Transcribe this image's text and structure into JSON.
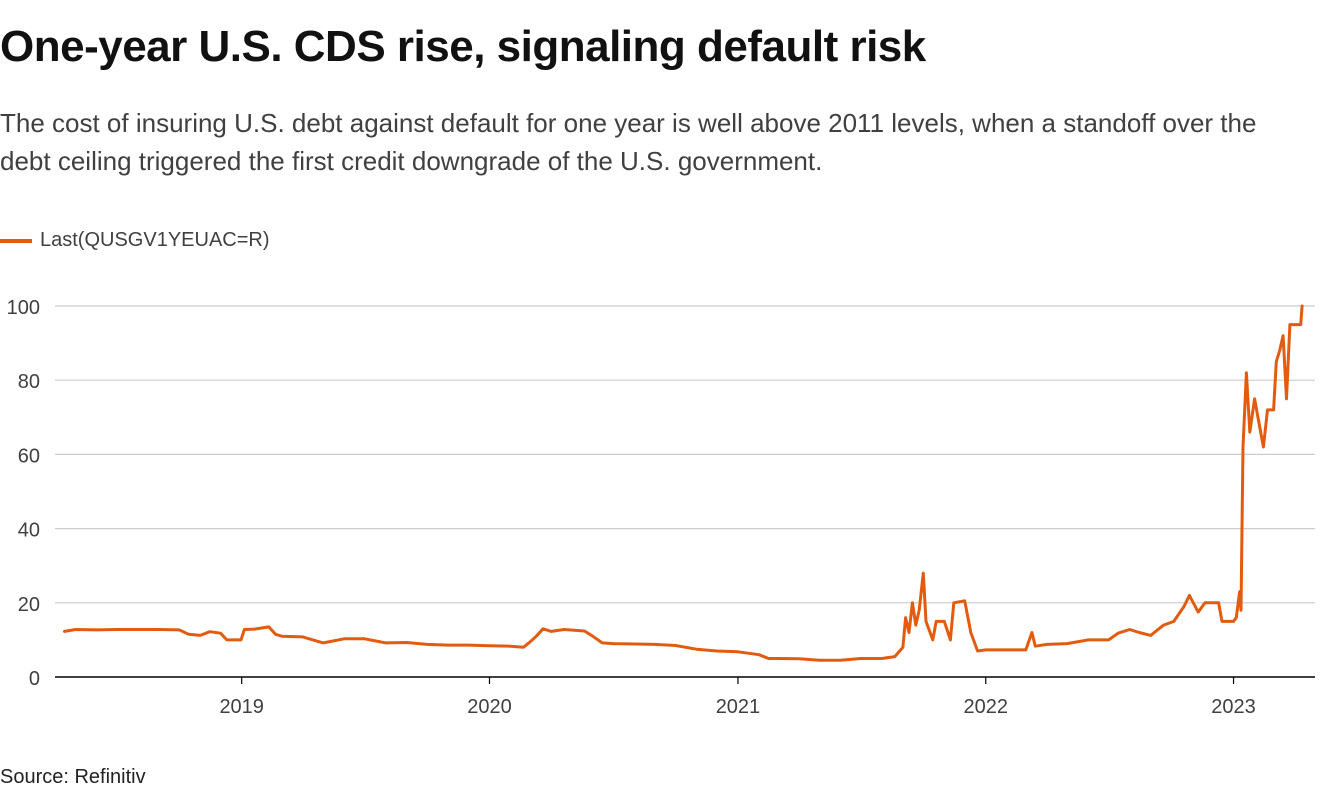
{
  "header": {
    "title": "One-year U.S. CDS rise, signaling default risk",
    "subtitle": "The cost of insuring U.S. debt against default for one year is well above 2011 levels, when a standoff over the debt ceiling triggered the first credit downgrade of the U.S. government."
  },
  "footer": {
    "source": "Source: Refinitiv"
  },
  "colors": {
    "line": "#e35b0e",
    "grid": "#cccccc",
    "axis": "#000000",
    "text": "#404040"
  },
  "chart_data": {
    "type": "line",
    "title": "One-year U.S. CDS rise, signaling default risk",
    "xlabel": "",
    "ylabel": "",
    "grid": true,
    "legend_position": "top-left",
    "ylim": [
      0,
      100
    ],
    "xlim": [
      "2018-04-01",
      "2023-05-01"
    ],
    "y_ticks": [
      0,
      20,
      40,
      60,
      80,
      100
    ],
    "x_ticks": [
      {
        "label": "2019",
        "date": "2019-01-01"
      },
      {
        "label": "2020",
        "date": "2020-01-01"
      },
      {
        "label": "2021",
        "date": "2021-01-01"
      },
      {
        "label": "2022",
        "date": "2022-01-01"
      },
      {
        "label": "2023",
        "date": "2023-01-01"
      }
    ],
    "series": [
      {
        "name": "Last(QUSGV1YEUAC=R)",
        "points": [
          [
            "2018-04-15",
            12.3
          ],
          [
            "2018-05-01",
            12.8
          ],
          [
            "2018-06-01",
            12.7
          ],
          [
            "2018-07-01",
            12.8
          ],
          [
            "2018-08-01",
            12.8
          ],
          [
            "2018-09-01",
            12.8
          ],
          [
            "2018-10-01",
            12.7
          ],
          [
            "2018-10-15",
            11.5
          ],
          [
            "2018-11-01",
            11.2
          ],
          [
            "2018-11-15",
            12.2
          ],
          [
            "2018-12-01",
            11.8
          ],
          [
            "2018-12-10",
            10.0
          ],
          [
            "2018-12-31",
            10.0
          ],
          [
            "2019-01-05",
            12.8
          ],
          [
            "2019-01-20",
            12.9
          ],
          [
            "2019-02-10",
            13.5
          ],
          [
            "2019-02-20",
            11.5
          ],
          [
            "2019-03-01",
            11.0
          ],
          [
            "2019-04-01",
            10.8
          ],
          [
            "2019-05-01",
            9.2
          ],
          [
            "2019-06-01",
            10.3
          ],
          [
            "2019-07-01",
            10.3
          ],
          [
            "2019-08-01",
            9.2
          ],
          [
            "2019-09-01",
            9.3
          ],
          [
            "2019-10-01",
            8.8
          ],
          [
            "2019-11-01",
            8.6
          ],
          [
            "2019-12-01",
            8.6
          ],
          [
            "2020-01-01",
            8.4
          ],
          [
            "2020-02-01",
            8.3
          ],
          [
            "2020-02-20",
            8.0
          ],
          [
            "2020-03-01",
            9.5
          ],
          [
            "2020-03-10",
            11.0
          ],
          [
            "2020-03-20",
            13.0
          ],
          [
            "2020-04-01",
            12.3
          ],
          [
            "2020-04-20",
            12.8
          ],
          [
            "2020-05-20",
            12.4
          ],
          [
            "2020-06-01",
            11.0
          ],
          [
            "2020-06-15",
            9.2
          ],
          [
            "2020-07-01",
            9.0
          ],
          [
            "2020-08-01",
            8.9
          ],
          [
            "2020-09-01",
            8.8
          ],
          [
            "2020-10-01",
            8.5
          ],
          [
            "2020-11-01",
            7.5
          ],
          [
            "2020-12-01",
            7.0
          ],
          [
            "2021-01-01",
            6.8
          ],
          [
            "2021-02-01",
            6.0
          ],
          [
            "2021-02-15",
            5.0
          ],
          [
            "2021-03-01",
            5.0
          ],
          [
            "2021-04-01",
            4.9
          ],
          [
            "2021-05-01",
            4.5
          ],
          [
            "2021-06-01",
            4.5
          ],
          [
            "2021-07-01",
            5.0
          ],
          [
            "2021-08-01",
            5.0
          ],
          [
            "2021-08-20",
            5.5
          ],
          [
            "2021-09-01",
            8.0
          ],
          [
            "2021-09-05",
            16.0
          ],
          [
            "2021-09-10",
            12.0
          ],
          [
            "2021-09-15",
            20.0
          ],
          [
            "2021-09-20",
            14.0
          ],
          [
            "2021-09-25",
            18.0
          ],
          [
            "2021-10-01",
            28.0
          ],
          [
            "2021-10-05",
            15.0
          ],
          [
            "2021-10-15",
            10.0
          ],
          [
            "2021-10-20",
            15.0
          ],
          [
            "2021-11-01",
            15.0
          ],
          [
            "2021-11-10",
            10.0
          ],
          [
            "2021-11-15",
            20.0
          ],
          [
            "2021-12-01",
            20.5
          ],
          [
            "2021-12-10",
            12.0
          ],
          [
            "2021-12-20",
            7.0
          ],
          [
            "2022-01-01",
            7.3
          ],
          [
            "2022-02-01",
            7.3
          ],
          [
            "2022-03-01",
            7.3
          ],
          [
            "2022-03-10",
            12.0
          ],
          [
            "2022-03-15",
            8.3
          ],
          [
            "2022-04-01",
            8.8
          ],
          [
            "2022-05-01",
            9.0
          ],
          [
            "2022-06-01",
            10.0
          ],
          [
            "2022-07-01",
            10.0
          ],
          [
            "2022-07-15",
            11.8
          ],
          [
            "2022-08-01",
            12.8
          ],
          [
            "2022-08-15",
            12.0
          ],
          [
            "2022-09-01",
            11.2
          ],
          [
            "2022-09-20",
            14.0
          ],
          [
            "2022-10-05",
            15.0
          ],
          [
            "2022-10-20",
            19.0
          ],
          [
            "2022-10-28",
            22.0
          ],
          [
            "2022-11-10",
            17.5
          ],
          [
            "2022-11-20",
            20.0
          ],
          [
            "2022-12-01",
            20.0
          ],
          [
            "2022-12-10",
            20.0
          ],
          [
            "2022-12-15",
            15.0
          ],
          [
            "2023-01-01",
            15.0
          ],
          [
            "2023-01-05",
            16.0
          ],
          [
            "2023-01-10",
            23.0
          ],
          [
            "2023-01-12",
            18.0
          ],
          [
            "2023-01-15",
            62.0
          ],
          [
            "2023-01-20",
            82.0
          ],
          [
            "2023-01-25",
            66.0
          ],
          [
            "2023-02-01",
            75.0
          ],
          [
            "2023-02-08",
            68.0
          ],
          [
            "2023-02-14",
            62.0
          ],
          [
            "2023-02-20",
            72.0
          ],
          [
            "2023-03-01",
            72.0
          ],
          [
            "2023-03-05",
            85.0
          ],
          [
            "2023-03-10",
            88.0
          ],
          [
            "2023-03-15",
            92.0
          ],
          [
            "2023-03-20",
            75.0
          ],
          [
            "2023-03-25",
            95.0
          ],
          [
            "2023-04-01",
            95.0
          ],
          [
            "2023-04-10",
            95.0
          ],
          [
            "2023-04-12",
            100.0
          ]
        ]
      }
    ]
  }
}
